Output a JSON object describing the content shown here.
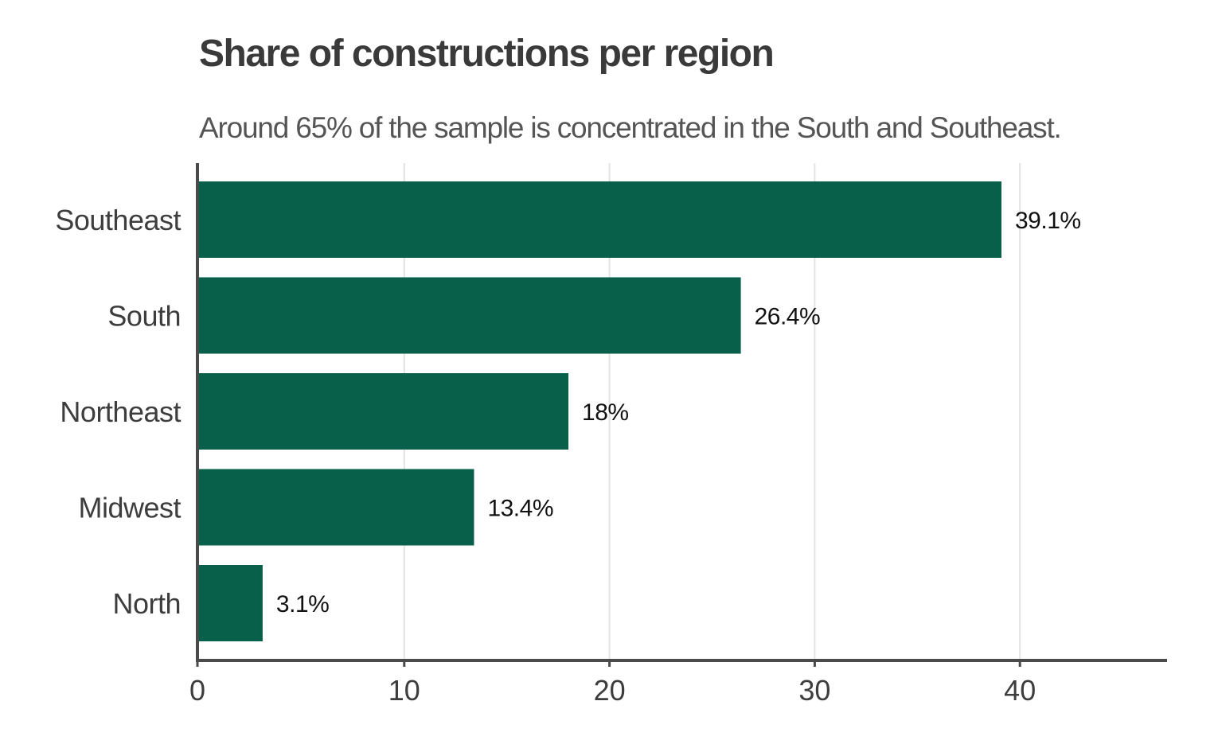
{
  "chart_data": {
    "type": "bar",
    "orientation": "horizontal",
    "title": "Share of constructions per region",
    "subtitle": "Around 65% of the sample is concentrated in the South and Southeast.",
    "categories": [
      "Southeast",
      "South",
      "Northeast",
      "Midwest",
      "North"
    ],
    "values": [
      39.1,
      26.4,
      18,
      13.4,
      3.1
    ],
    "value_labels": [
      "39.1%",
      "26.4%",
      "18%",
      "13.4%",
      "3.1%"
    ],
    "xlabel": "",
    "ylabel": "",
    "xlim": [
      0,
      47.3
    ],
    "xticks": [
      0,
      10,
      20,
      30,
      40
    ],
    "xtick_labels": [
      "0",
      "10",
      "20",
      "30",
      "40"
    ],
    "grid": "vertical",
    "legend": "none",
    "colors": {
      "bar": "#08604a",
      "grid": "#e3e3e3",
      "axis": "#4a4a4a"
    }
  }
}
